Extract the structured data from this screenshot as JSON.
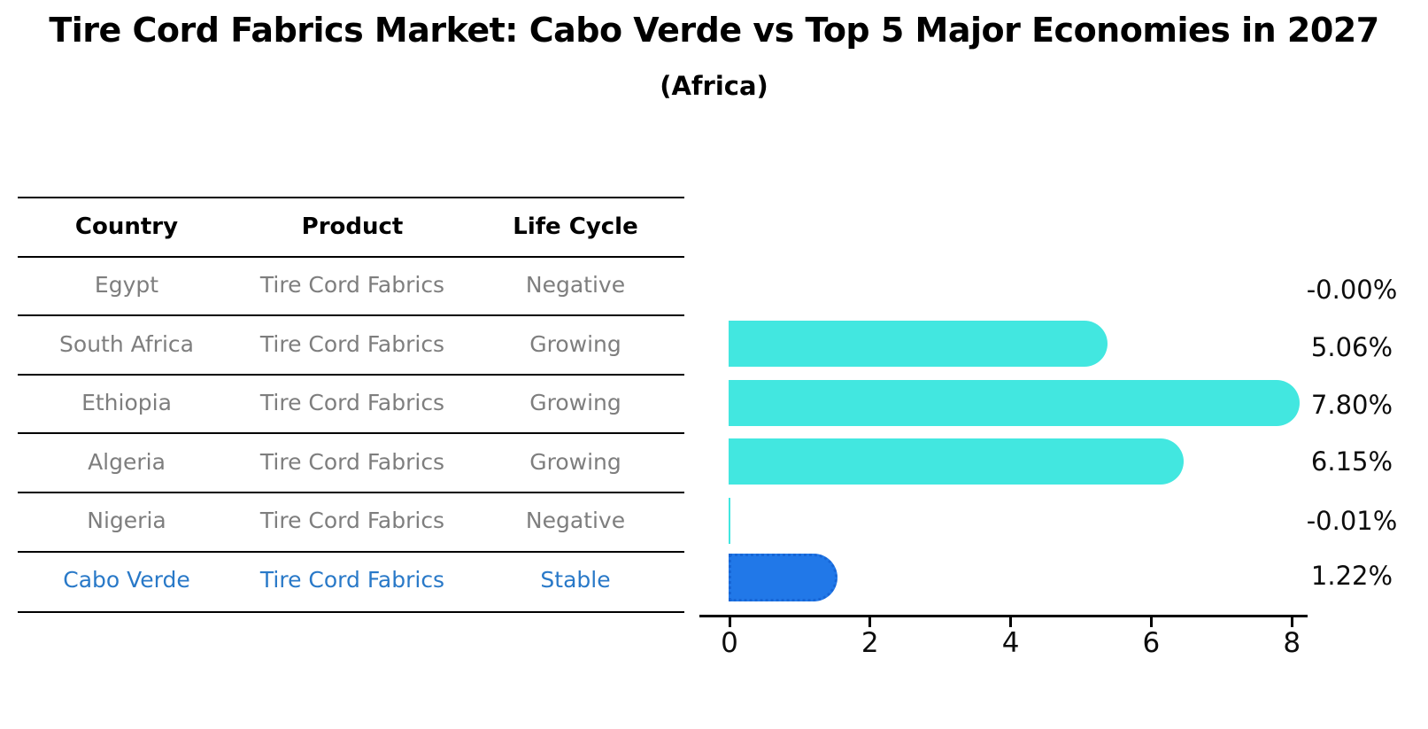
{
  "title": "Tire Cord Fabrics Market: Cabo Verde vs Top 5 Major Economies in 2027",
  "subtitle": "(Africa)",
  "table": {
    "headers": [
      "Country",
      "Product",
      "Life Cycle"
    ],
    "rows": [
      {
        "country": "Egypt",
        "product": "Tire Cord Fabrics",
        "life_cycle": "Negative",
        "highlight": false
      },
      {
        "country": "South Africa",
        "product": "Tire Cord Fabrics",
        "life_cycle": "Growing",
        "highlight": false
      },
      {
        "country": "Ethiopia",
        "product": "Tire Cord Fabrics",
        "life_cycle": "Growing",
        "highlight": false
      },
      {
        "country": "Algeria",
        "product": "Tire Cord Fabrics",
        "life_cycle": "Growing",
        "highlight": false
      },
      {
        "country": "Nigeria",
        "product": "Tire Cord Fabrics",
        "life_cycle": "Negative",
        "highlight": false
      },
      {
        "country": "Cabo Verde",
        "product": "Tire Cord Fabrics",
        "life_cycle": "Stable",
        "highlight": true
      }
    ]
  },
  "chart_data": {
    "type": "bar",
    "orientation": "horizontal",
    "categories": [
      "Egypt",
      "South Africa",
      "Ethiopia",
      "Algeria",
      "Nigeria",
      "Cabo Verde"
    ],
    "values": [
      -0.0,
      5.06,
      7.8,
      6.15,
      -0.01,
      1.22
    ],
    "value_labels": [
      "-0.00%",
      "5.06%",
      "7.80%",
      "6.15%",
      "-0.01%",
      "1.22%"
    ],
    "x_ticks": [
      "0",
      "2",
      "4",
      "6",
      "8"
    ],
    "x_tick_values": [
      0,
      2,
      4,
      6,
      8
    ],
    "xlim": [
      0,
      8
    ],
    "grid": false,
    "legend": "none",
    "bar_color": "#42e7e0",
    "highlight_color": "#2178e8",
    "highlight_border_color": "#1766d6",
    "highlight_index": 5
  },
  "colors": {
    "text_muted": "#7e7e7e",
    "text_highlight": "#2979c8",
    "axis": "#000000"
  }
}
